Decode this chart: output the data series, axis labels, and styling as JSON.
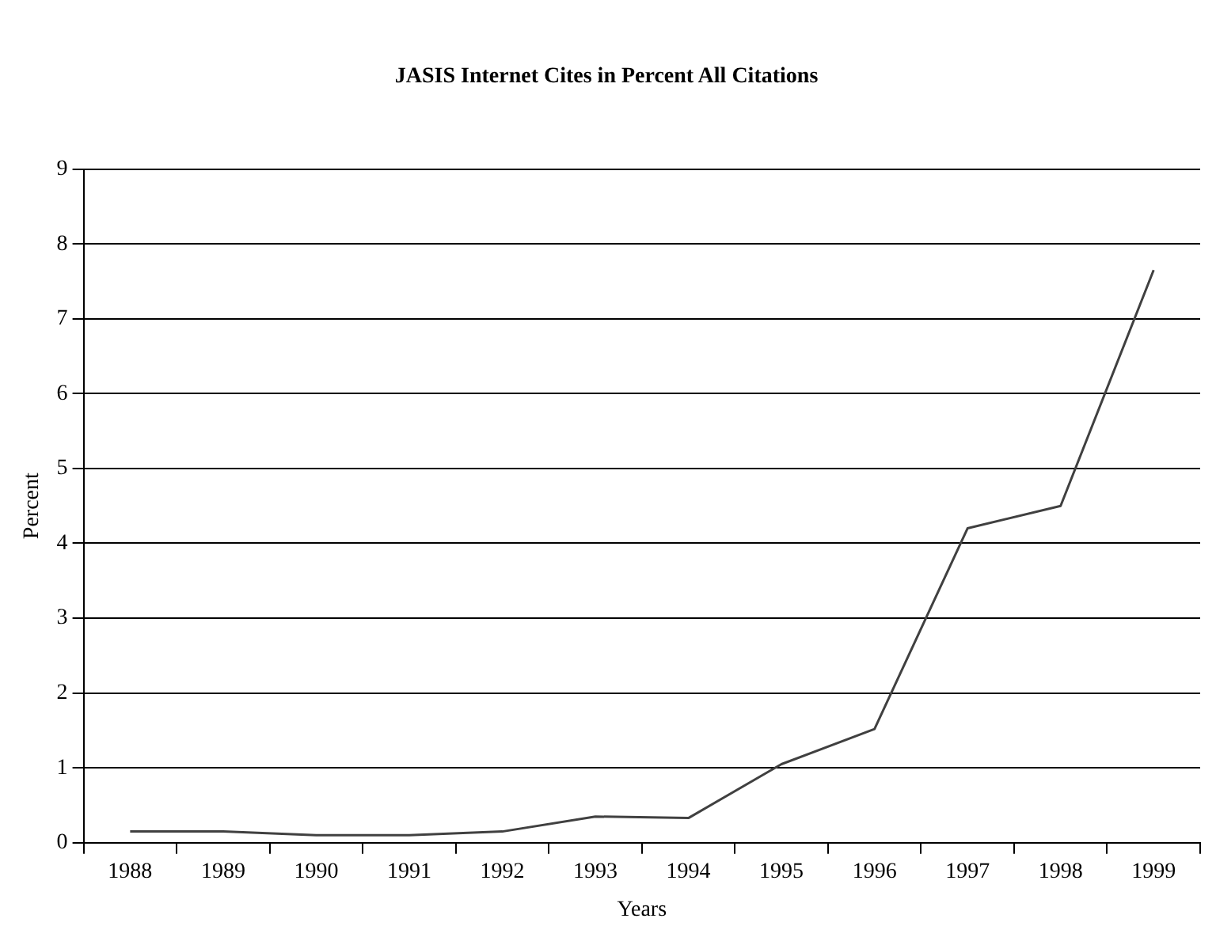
{
  "chart_data": {
    "type": "line",
    "title": "JASIS Internet Cites in Percent All Citations",
    "xlabel": "Years",
    "ylabel": "Percent",
    "categories": [
      "1988",
      "1989",
      "1990",
      "1991",
      "1992",
      "1993",
      "1994",
      "1995",
      "1996",
      "1997",
      "1998",
      "1999"
    ],
    "series": [
      {
        "color": "#404040",
        "values": [
          0.15,
          0.15,
          0.1,
          0.1,
          0.15,
          0.35,
          0.33,
          1.05,
          1.52,
          4.2,
          4.5,
          7.65
        ]
      }
    ],
    "ylim": [
      0,
      9
    ],
    "yticks": [
      0,
      1,
      2,
      3,
      4,
      5,
      6,
      7,
      8,
      9
    ],
    "grid": "y",
    "legend": false,
    "marker": "none",
    "line_style": "solid"
  }
}
